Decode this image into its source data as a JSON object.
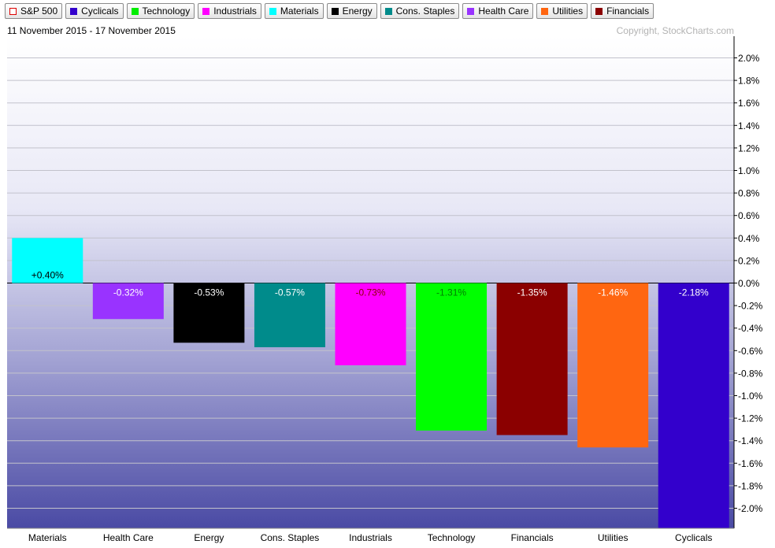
{
  "legend": [
    {
      "label": "S&P 500",
      "color": "#dd0000",
      "hollow": true
    },
    {
      "label": "Cyclicals",
      "color": "#3300cc"
    },
    {
      "label": "Technology",
      "color": "#00ee00"
    },
    {
      "label": "Industrials",
      "color": "#ff00ff"
    },
    {
      "label": "Materials",
      "color": "#00ffff"
    },
    {
      "label": "Energy",
      "color": "#000000"
    },
    {
      "label": "Cons. Staples",
      "color": "#008b8b"
    },
    {
      "label": "Health Care",
      "color": "#9933ff"
    },
    {
      "label": "Utilities",
      "color": "#ff6611"
    },
    {
      "label": "Financials",
      "color": "#8b0000"
    }
  ],
  "header": {
    "date_range": "11 November 2015 - 17 November 2015",
    "copyright": "Copyright, StockCharts.com"
  },
  "chart_data": {
    "type": "bar",
    "categories": [
      "Materials",
      "Health Care",
      "Energy",
      "Cons. Staples",
      "Industrials",
      "Technology",
      "Financials",
      "Utilities",
      "Cyclicals"
    ],
    "values": [
      0.4,
      -0.32,
      -0.53,
      -0.57,
      -0.73,
      -1.31,
      -1.35,
      -1.46,
      -2.18
    ],
    "value_labels": [
      "+0.40%",
      "-0.32%",
      "-0.53%",
      "-0.57%",
      "-0.73%",
      "-1.31%",
      "-1.35%",
      "-1.46%",
      "-2.18%"
    ],
    "colors": [
      "#00ffff",
      "#9933ff",
      "#000000",
      "#008b8b",
      "#ff00ff",
      "#00ff00",
      "#8b0000",
      "#ff6611",
      "#3300cc"
    ],
    "label_colors": [
      "#000000",
      "#ffffff",
      "#ffffff",
      "#ffffff",
      "#8b0000",
      "#008000",
      "#ffffff",
      "#ffffff",
      "#ffffff"
    ],
    "y_ticks": [
      2.0,
      1.8,
      1.6,
      1.4,
      1.2,
      1.0,
      0.8,
      0.6,
      0.4,
      0.2,
      0.0,
      -0.2,
      -0.4,
      -0.6,
      -0.8,
      -1.0,
      -1.2,
      -1.4,
      -1.6,
      -1.8,
      -2.0
    ],
    "y_tick_labels": [
      "2.0%",
      "1.8%",
      "1.6%",
      "1.4%",
      "1.2%",
      "1.0%",
      "0.8%",
      "0.6%",
      "0.4%",
      "0.2%",
      "0.0%",
      "-0.2%",
      "-0.4%",
      "-0.6%",
      "-0.8%",
      "-1.0%",
      "-1.2%",
      "-1.4%",
      "-1.6%",
      "-1.8%",
      "-2.0%"
    ],
    "ylim": [
      -2.2,
      2.05
    ],
    "y_axis_position": "right",
    "grid": true
  }
}
